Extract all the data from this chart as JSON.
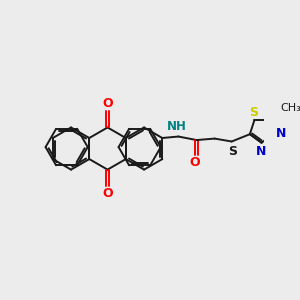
{
  "bg_color": "#ececec",
  "bond_color": "#1a1a1a",
  "o_color": "#ff0000",
  "n_color": "#0000cc",
  "s_color": "#cccc00",
  "nh_color": "#008080",
  "line_width": 1.4,
  "title": "",
  "xlim": [
    -3.8,
    5.2
  ],
  "ylim": [
    -2.8,
    2.8
  ]
}
